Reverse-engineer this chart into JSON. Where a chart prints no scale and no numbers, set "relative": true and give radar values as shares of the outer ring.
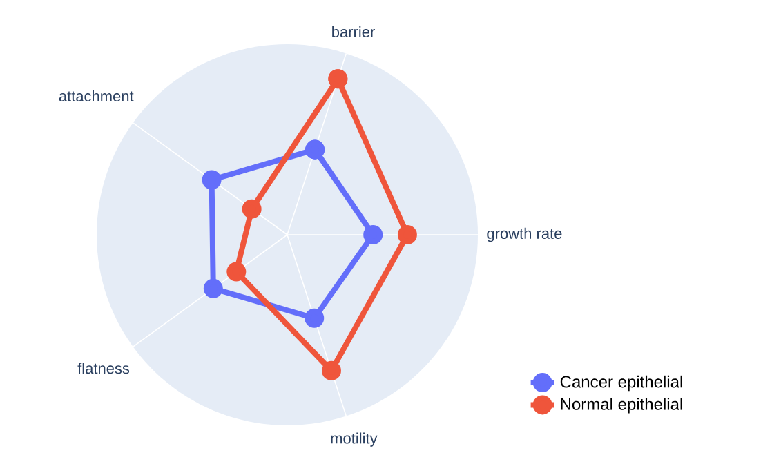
{
  "chart_data": {
    "type": "radar",
    "relative": true,
    "categories": [
      "barrier",
      "growth rate",
      "motility",
      "flatness",
      "attachment"
    ],
    "series": [
      {
        "name": "Cancer epithelial",
        "color": "#636efa",
        "values": [
          0.47,
          0.45,
          0.46,
          0.48,
          0.49
        ]
      },
      {
        "name": "Normal epithelial",
        "color": "#ef553b",
        "values": [
          0.86,
          0.63,
          0.75,
          0.33,
          0.23
        ]
      }
    ],
    "grid": true,
    "legend": "bottom right",
    "marker": "circle",
    "line_style": "solid"
  }
}
